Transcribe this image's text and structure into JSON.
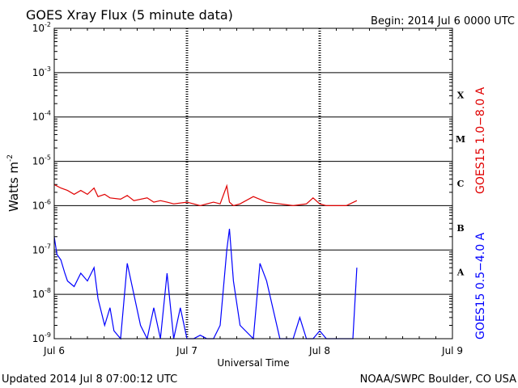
{
  "chart_data": {
    "type": "line",
    "title": "GOES Xray Flux (5 minute data)",
    "begin_label": "Begin:  2014 Jul 6 0000 UTC",
    "xlabel": "Universal Time",
    "ylabel": "Watts m",
    "ylabel_exponent": "-2",
    "y_scale": "log",
    "ylim": [
      1e-09,
      0.01
    ],
    "y_ticks": [
      {
        "base": "10",
        "exp": "-2"
      },
      {
        "base": "10",
        "exp": "-3"
      },
      {
        "base": "10",
        "exp": "-4"
      },
      {
        "base": "10",
        "exp": "-5"
      },
      {
        "base": "10",
        "exp": "-6"
      },
      {
        "base": "10",
        "exp": "-7"
      },
      {
        "base": "10",
        "exp": "-8"
      },
      {
        "base": "10",
        "exp": "-9"
      }
    ],
    "x_ticks": [
      "Jul 6",
      "Jul 7",
      "Jul 8",
      "Jul 9"
    ],
    "xlim_days": [
      0,
      3
    ],
    "flare_classes": [
      "X",
      "M",
      "C",
      "B",
      "A"
    ],
    "grid": "horizontal at decades, dashed vertical at day boundaries",
    "series": [
      {
        "name": "GOES15 1.0−8.0 A",
        "color": "#e00000",
        "x_days": [
          0.0,
          0.05,
          0.1,
          0.15,
          0.2,
          0.25,
          0.3,
          0.33,
          0.38,
          0.42,
          0.5,
          0.55,
          0.6,
          0.7,
          0.75,
          0.8,
          0.85,
          0.9,
          1.0,
          1.05,
          1.1,
          1.2,
          1.25,
          1.3,
          1.32,
          1.35,
          1.4,
          1.5,
          1.6,
          1.7,
          1.8,
          1.9,
          1.95,
          2.0,
          2.05,
          2.1,
          2.2,
          2.28
        ],
        "values": [
          3e-06,
          2.5e-06,
          2.2e-06,
          1.8e-06,
          2.2e-06,
          1.8e-06,
          2.5e-06,
          1.6e-06,
          1.8e-06,
          1.5e-06,
          1.4e-06,
          1.7e-06,
          1.3e-06,
          1.5e-06,
          1.2e-06,
          1.3e-06,
          1.2e-06,
          1.1e-06,
          1.2e-06,
          1.1e-06,
          1e-06,
          1.2e-06,
          1.1e-06,
          2.8e-06,
          1.2e-06,
          1e-06,
          1.1e-06,
          1.6e-06,
          1.2e-06,
          1.1e-06,
          1e-06,
          1.1e-06,
          1.5e-06,
          1.1e-06,
          1e-06,
          1e-06,
          1e-06,
          1.3e-06
        ]
      },
      {
        "name": "GOES15 0.5−4.0 A",
        "color": "#0000ff",
        "x_days": [
          0.0,
          0.02,
          0.05,
          0.08,
          0.1,
          0.15,
          0.2,
          0.25,
          0.3,
          0.33,
          0.38,
          0.42,
          0.45,
          0.5,
          0.55,
          0.6,
          0.65,
          0.7,
          0.75,
          0.8,
          0.85,
          0.9,
          0.95,
          1.0,
          1.05,
          1.1,
          1.15,
          1.2,
          1.25,
          1.3,
          1.32,
          1.35,
          1.4,
          1.5,
          1.55,
          1.6,
          1.7,
          1.8,
          1.85,
          1.9,
          1.95,
          2.0,
          2.05,
          2.1,
          2.15,
          2.2,
          2.25,
          2.28
        ],
        "values": [
          2e-07,
          8e-08,
          6e-08,
          3e-08,
          2e-08,
          1.5e-08,
          3e-08,
          2e-08,
          4e-08,
          8e-09,
          2e-09,
          5e-09,
          1.5e-09,
          1e-09,
          5e-08,
          1e-08,
          2e-09,
          1e-09,
          5e-09,
          1e-09,
          3e-08,
          1e-09,
          5e-09,
          1e-09,
          1e-09,
          1.2e-09,
          1e-09,
          1e-09,
          2e-09,
          1e-07,
          3e-07,
          2e-08,
          2e-09,
          1e-09,
          5e-08,
          2e-08,
          1e-09,
          1e-09,
          3e-09,
          1e-09,
          1e-09,
          1.5e-09,
          1e-09,
          1e-09,
          1e-09,
          1e-09,
          1e-09,
          4e-08
        ]
      }
    ]
  },
  "footer": {
    "updated": "Updated 2014 Jul  8 07:00:12 UTC",
    "credit": "NOAA/SWPC Boulder, CO USA"
  }
}
